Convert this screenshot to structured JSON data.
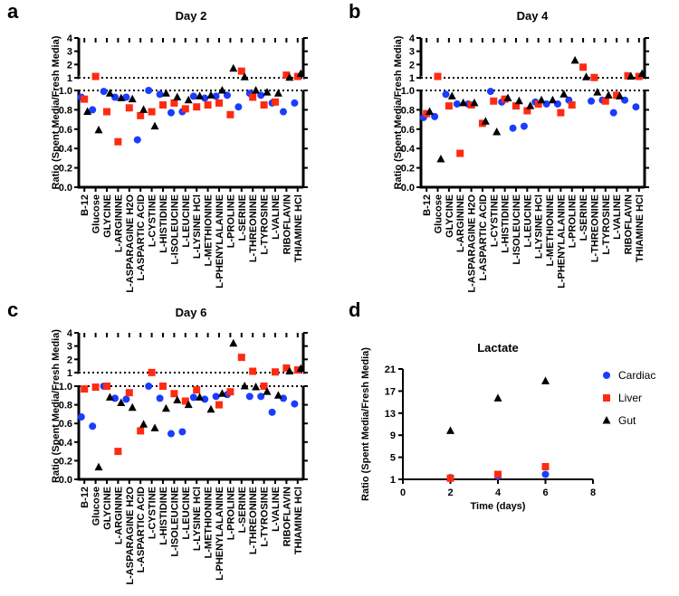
{
  "chart_data": [
    {
      "letter": "a",
      "type": "scatter",
      "title": "Day 2",
      "ylabel": "Ratio (Spent Media/Fresh Media)",
      "ylim_lower": [
        0,
        1.0
      ],
      "ylim_upper": [
        1,
        4
      ],
      "yticks_lower": [
        "0.0",
        "0.2",
        "0.4",
        "0.6",
        "0.8",
        "1.0"
      ],
      "yticks_upper": [
        "1",
        "2",
        "3",
        "4"
      ],
      "categories": [
        "B-12",
        "Glucose",
        "GLYCINE",
        "L-ARGININE",
        "L-ASPARAGINE H2O",
        "L-ASPARTIC ACID",
        "L-CYSTINE",
        "L-HISTIDINE",
        "L-ISOLEUCINE",
        "L-LEUCINE",
        "L-LYSINE HCl",
        "L-METHIONINE",
        "L-PHENYLALANINE",
        "L-PROLINE",
        "L-SERINE",
        "L-THREONINE",
        "L-TYROSINE",
        "L-VALINE",
        "RIBOFLAVIN",
        "THIAMINE HCl"
      ],
      "series": [
        {
          "name": "Cardiac",
          "values": [
            0.93,
            0.8,
            0.99,
            0.93,
            0.93,
            0.49,
            1.0,
            0.96,
            0.77,
            0.78,
            0.94,
            0.92,
            0.94,
            0.95,
            0.83,
            0.97,
            0.95,
            0.87,
            0.78,
            0.87
          ]
        },
        {
          "name": "Liver",
          "values": [
            0.91,
            1.1,
            0.78,
            0.47,
            0.82,
            0.74,
            0.78,
            0.85,
            0.87,
            0.81,
            0.83,
            0.85,
            0.87,
            0.75,
            1.5,
            0.93,
            0.85,
            0.88,
            1.2,
            1.1
          ]
        },
        {
          "name": "Gut",
          "values": [
            0.78,
            0.59,
            0.97,
            0.92,
            0.91,
            0.8,
            0.63,
            0.97,
            0.93,
            0.9,
            0.94,
            0.95,
            1.0,
            1.7,
            1.05,
            1.0,
            0.98,
            0.97,
            1.02,
            1.3
          ]
        }
      ]
    },
    {
      "letter": "b",
      "type": "scatter",
      "title": "Day 4",
      "ylabel": "Ratio (Spent Media/Fresh Media)",
      "ylim_lower": [
        0,
        1.0
      ],
      "ylim_upper": [
        1,
        4
      ],
      "yticks_lower": [
        "0.0",
        "0.2",
        "0.4",
        "0.6",
        "0.8",
        "1.0"
      ],
      "yticks_upper": [
        "1",
        "2",
        "3",
        "4"
      ],
      "categories": [
        "B-12",
        "Glucose",
        "GLYCINE",
        "L-ARGININE",
        "L-ASPARAGINE H2O",
        "L-ASPARTIC ACID",
        "L-CYSTINE",
        "L-HISTIDINE",
        "L-ISOLEUCINE",
        "L-LEUCINE",
        "L-LYSINE HCl",
        "L-METHIONINE",
        "L-PHENYLALANINE",
        "L-PROLINE",
        "L-SERINE",
        "L-THREONINE",
        "L-TYROSINE",
        "L-VALINE",
        "RIBOFLAVIN",
        "THIAMINE HCl"
      ],
      "series": [
        {
          "name": "Cardiac",
          "values": [
            0.72,
            0.73,
            0.96,
            0.86,
            0.86,
            null,
            0.99,
            0.88,
            0.61,
            0.63,
            0.88,
            0.86,
            0.86,
            0.9,
            null,
            0.89,
            0.9,
            0.77,
            0.9,
            0.83
          ]
        },
        {
          "name": "Liver",
          "values": [
            0.76,
            1.1,
            0.84,
            0.35,
            0.85,
            0.66,
            0.89,
            0.91,
            0.84,
            0.79,
            0.86,
            null,
            0.77,
            0.85,
            1.8,
            1.02,
            0.89,
            0.95,
            1.15,
            1.1
          ]
        },
        {
          "name": "Gut",
          "values": [
            0.78,
            0.29,
            0.94,
            0.87,
            0.87,
            0.68,
            0.57,
            0.92,
            0.89,
            0.84,
            0.9,
            0.9,
            0.96,
            2.3,
            1.05,
            0.98,
            0.95,
            0.94,
            1.1,
            1.3
          ]
        }
      ]
    },
    {
      "letter": "c",
      "type": "scatter",
      "title": "Day 6",
      "ylabel": "Ratio (Spent Media/Fresh Media)",
      "ylim_lower": [
        0,
        1.0
      ],
      "ylim_upper": [
        1,
        4
      ],
      "yticks_lower": [
        "0.0",
        "0.2",
        "0.4",
        "0.6",
        "0.8",
        "1.0"
      ],
      "yticks_upper": [
        "1",
        "2",
        "3",
        "4"
      ],
      "categories": [
        "B-12",
        "Glucose",
        "GLYCINE",
        "L-ARGININE",
        "L-ASPARAGINE H2O",
        "L-ASPARTIC ACID",
        "L-CYSTINE",
        "L-HISTIDINE",
        "L-ISOLEUCINE",
        "L-LEUCINE",
        "L-LYSINE HCl",
        "L-METHIONINE",
        "L-PHENYLALANINE",
        "L-PROLINE",
        "L-SERINE",
        "L-THREONINE",
        "L-TYROSINE",
        "L-VALINE",
        "RIBOFLAVIN",
        "THIAMINE HCl"
      ],
      "series": [
        {
          "name": "Cardiac",
          "values": [
            0.67,
            0.57,
            1.0,
            0.87,
            0.86,
            null,
            1.0,
            0.87,
            0.49,
            0.51,
            0.88,
            0.86,
            0.89,
            0.91,
            null,
            0.89,
            0.89,
            0.72,
            0.87,
            0.81
          ]
        },
        {
          "name": "Liver",
          "values": [
            0.97,
            0.99,
            1.0,
            0.3,
            0.93,
            0.52,
            1.01,
            1.0,
            0.92,
            0.84,
            0.96,
            null,
            0.8,
            0.94,
            2.15,
            1.1,
            1.0,
            1.05,
            1.35,
            1.2
          ]
        },
        {
          "name": "Gut",
          "values": [
            null,
            0.13,
            0.88,
            0.82,
            0.77,
            0.59,
            0.55,
            0.76,
            0.85,
            0.8,
            0.88,
            0.75,
            0.92,
            3.2,
            1.0,
            0.99,
            0.94,
            0.9,
            1.1,
            1.3
          ]
        }
      ]
    },
    {
      "letter": "d",
      "type": "scatter",
      "title": "Lactate",
      "xlabel": "Time (days)",
      "ylabel": "Ratio (Spent Media/Fresh Media)",
      "xlim": [
        0,
        8
      ],
      "ylim": [
        1,
        21
      ],
      "xticks": [
        "0",
        "2",
        "4",
        "6",
        "8"
      ],
      "yticks": [
        "1",
        "5",
        "9",
        "13",
        "17",
        "21"
      ],
      "x": [
        2,
        4,
        6
      ],
      "series": [
        {
          "name": "Cardiac",
          "values": [
            1.3,
            1.5,
            1.9
          ]
        },
        {
          "name": "Liver",
          "values": [
            1.2,
            1.9,
            3.3
          ]
        },
        {
          "name": "Gut",
          "values": [
            9.8,
            15.7,
            18.8
          ]
        }
      ],
      "legend": [
        "Cardiac",
        "Liver",
        "Gut"
      ],
      "legend_position": "right"
    }
  ],
  "colors": {
    "Cardiac": "#1a3cff",
    "Liver": "#ff2a12",
    "Gut": "#000000"
  },
  "reference_line": 1
}
